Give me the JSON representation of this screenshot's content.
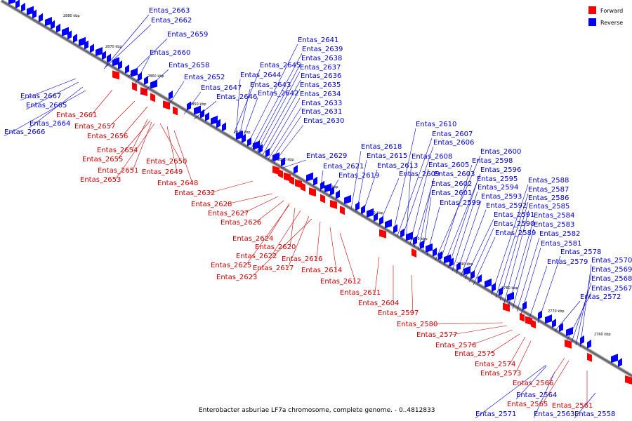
{
  "caption": "Enterobacter asburiae LF7a chromosome, complete genome. - 0..4812833",
  "legend": {
    "forward": "Forward",
    "reverse": "Reverse",
    "forward_color": "#ff0000",
    "reverse_color": "#0000ff"
  },
  "ticks": [
    "2880 kbp",
    "2870 kbp",
    "2860 kbp",
    "2850 kbp",
    "2840 kbp",
    "2830 kbp",
    "2820 kbp",
    "2810 kbp",
    "2800 kbp",
    "2790 kbp",
    "2780 kbp",
    "2770 kbp",
    "2760 kbp"
  ],
  "reverse_genes": [
    "Entas_2663",
    "Entas_2662",
    "Entas_2659",
    "Entas_2660",
    "Entas_2658",
    "Entas_2652",
    "Entas_2647",
    "Entas_2646",
    "Entas_2645",
    "Entas_2644",
    "Entas_2643",
    "Entas_2642",
    "Entas_2641",
    "Entas_2639",
    "Entas_2638",
    "Entas_2637",
    "Entas_2636",
    "Entas_2635",
    "Entas_2634",
    "Entas_2633",
    "Entas_2631",
    "Entas_2630",
    "Entas_2629",
    "Entas_2621",
    "Entas_2619",
    "Entas_2618",
    "Entas_2615",
    "Entas_2613",
    "Entas_2609",
    "Entas_2610",
    "Entas_2607",
    "Entas_2606",
    "Entas_2608",
    "Entas_2605",
    "Entas_2603",
    "Entas_2602",
    "Entas_2601",
    "Entas_2599",
    "Entas_2600",
    "Entas_2598",
    "Entas_2596",
    "Entas_2595",
    "Entas_2594",
    "Entas_2593",
    "Entas_2592",
    "Entas_2591",
    "Entas_2590",
    "Entas_2589",
    "Entas_2588",
    "Entas_2587",
    "Entas_2586",
    "Entas_2585",
    "Entas_2584",
    "Entas_2583",
    "Entas_2582",
    "Entas_2581",
    "Entas_2578",
    "Entas_2579",
    "Entas_2570",
    "Entas_2569",
    "Entas_2568",
    "Entas_2567",
    "Entas_2572",
    "Entas_2667",
    "Entas_2665",
    "Entas_2664",
    "Entas_2666",
    "Entas_2571",
    "Entas_2564",
    "Entas_2563",
    "Entas_2558"
  ],
  "forward_genes": [
    "Entas_2661",
    "Entas_2657",
    "Entas_2656",
    "Entas_2654",
    "Entas_2655",
    "Entas_2650",
    "Entas_2651",
    "Entas_2649",
    "Entas_2653",
    "Entas_2648",
    "Entas_2632",
    "Entas_2628",
    "Entas_2627",
    "Entas_2626",
    "Entas_2624",
    "Entas_2620",
    "Entas_2622",
    "Entas_2625",
    "Entas_2617",
    "Entas_2616",
    "Entas_2614",
    "Entas_2623",
    "Entas_2612",
    "Entas_2611",
    "Entas_2604",
    "Entas_2597",
    "Entas_2580",
    "Entas_2577",
    "Entas_2576",
    "Entas_2575",
    "Entas_2574",
    "Entas_2573",
    "Entas_2566",
    "Entas_2565",
    "Entas_2561"
  ]
}
